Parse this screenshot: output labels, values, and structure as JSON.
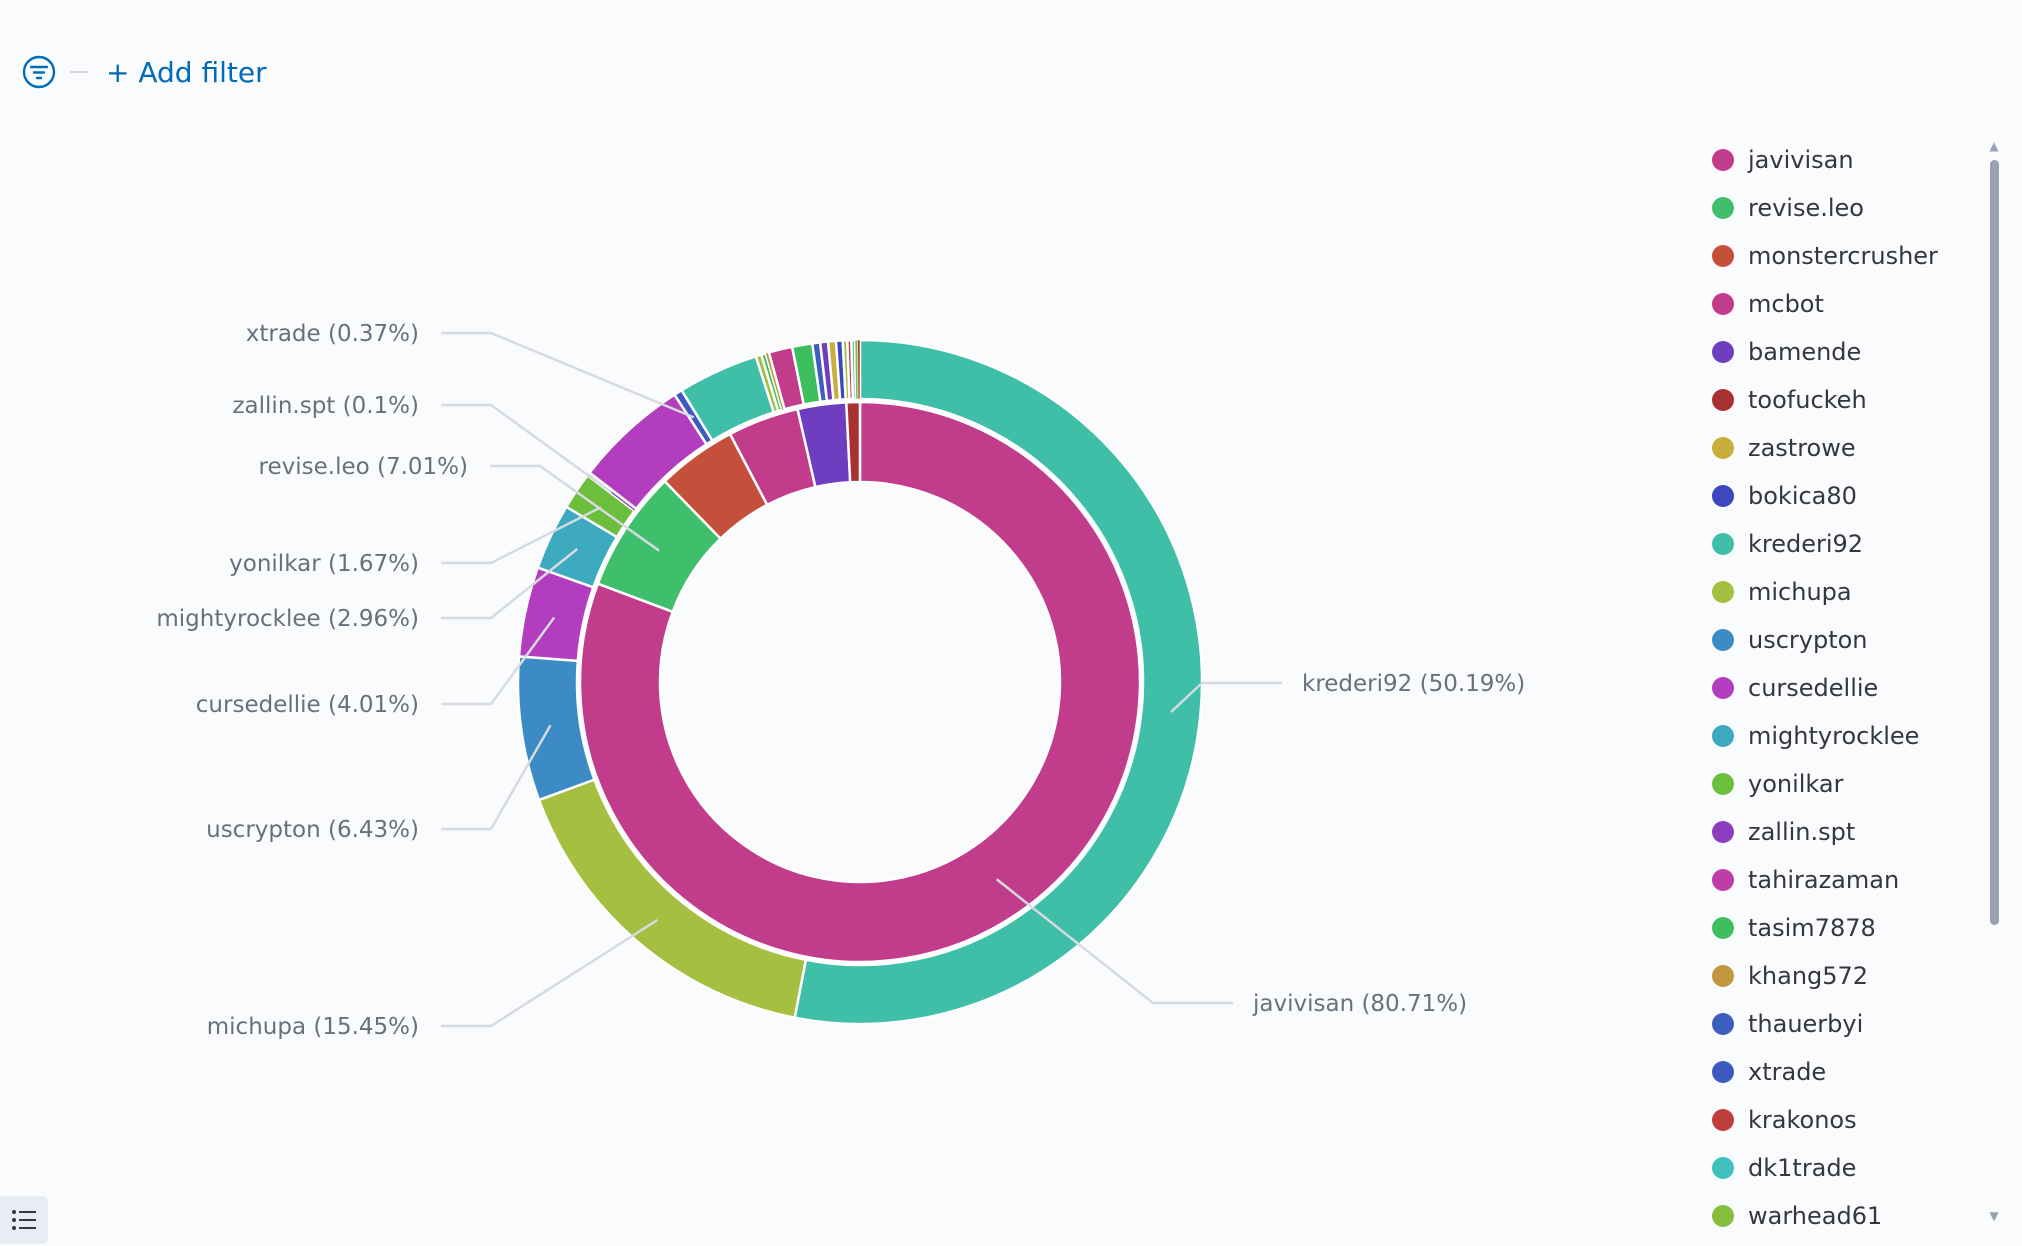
{
  "toolbar": {
    "add_filter_label": "+ Add filter",
    "filter_icon": "filter-icon"
  },
  "colors": {
    "javivisan": "#c13d8c",
    "revise.leo": "#3fbf6b",
    "monstercrusher": "#c4503b",
    "mcbot": "#c13d8c",
    "bamende": "#6f3dbf",
    "toofuckeh": "#a83232",
    "zastrowe": "#c9ad3d",
    "bokica80": "#3d47bf",
    "krederi92": "#40bfa8",
    "michupa": "#a6bf40",
    "uscrypton": "#3d8bc4",
    "cursedellie": "#b33dbf",
    "mightyrocklee": "#3daabf",
    "yonilkar": "#6cbf3d",
    "zallin.spt": "#8a3dbf",
    "tahirazaman": "#bf3da9",
    "tasim7878": "#3dbf60",
    "khang572": "#bf983d",
    "thauerbyi": "#3d5dbf",
    "xtrade": "#3d5abf",
    "krakonos": "#bf3d3d",
    "dk1trade": "#40bfbf",
    "warhead61": "#86bf3d"
  },
  "chart_data": {
    "type": "pie",
    "donut": true,
    "rings": [
      {
        "ring": "inner",
        "slices": [
          {
            "name": "javivisan",
            "value": 80.71
          },
          {
            "name": "revise.leo",
            "value": 7.01
          },
          {
            "name": "monstercrusher",
            "value": 4.6
          },
          {
            "name": "mcbot",
            "value": 4.1
          },
          {
            "name": "bamende",
            "value": 2.8
          },
          {
            "name": "toofuckeh",
            "value": 0.78
          }
        ]
      },
      {
        "ring": "outer",
        "slices": [
          {
            "name": "krederi92",
            "value": 50.19
          },
          {
            "name": "michupa",
            "value": 15.45
          },
          {
            "name": "uscrypton",
            "value": 6.43
          },
          {
            "name": "cursedellie",
            "value": 4.01
          },
          {
            "name": "mightyrocklee",
            "value": 2.96
          },
          {
            "name": "yonilkar",
            "value": 1.67
          },
          {
            "name": "zallin.spt",
            "value": 0.1
          },
          {
            "name": "tahirazaman",
            "value": 0.05
          },
          {
            "name": "cursedellie",
            "value": 5.1
          },
          {
            "name": "xtrade",
            "value": 0.37
          },
          {
            "name": "krederi92",
            "value": 3.6
          },
          {
            "name": "michupa",
            "value": 0.25
          },
          {
            "name": "tasim7878",
            "value": 0.2
          },
          {
            "name": "khang572",
            "value": 0.15
          },
          {
            "name": "mcbot",
            "value": 1.05
          },
          {
            "name": "tasim7878",
            "value": 0.9
          },
          {
            "name": "thauerbyi",
            "value": 0.35
          },
          {
            "name": "bamende",
            "value": 0.35
          },
          {
            "name": "zastrowe",
            "value": 0.35
          },
          {
            "name": "bokica80",
            "value": 0.3
          },
          {
            "name": "michupa",
            "value": 0.2
          },
          {
            "name": "krakonos",
            "value": 0.18
          },
          {
            "name": "dk1trade",
            "value": 0.16
          },
          {
            "name": "warhead61",
            "value": 0.12
          },
          {
            "name": "toofuckeh",
            "value": 0.1
          }
        ]
      }
    ],
    "labels": [
      {
        "text": "krederi92 (50.19%)",
        "side": "right",
        "ring": "outer",
        "slice": 0
      },
      {
        "text": "javivisan (80.71%)",
        "side": "right",
        "ring": "inner",
        "slice": 0
      },
      {
        "text": "michupa (15.45%)",
        "side": "left",
        "ring": "outer",
        "slice": 1
      },
      {
        "text": "uscrypton (6.43%)",
        "side": "left",
        "ring": "outer",
        "slice": 2
      },
      {
        "text": "cursedellie (4.01%)",
        "side": "left",
        "ring": "outer",
        "slice": 3
      },
      {
        "text": "mightyrocklee (2.96%)",
        "side": "left",
        "ring": "outer",
        "slice": 4
      },
      {
        "text": "yonilkar (1.67%)",
        "side": "left",
        "ring": "outer",
        "slice": 5
      },
      {
        "text": "revise.leo (7.01%)",
        "side": "left",
        "ring": "inner",
        "slice": 1
      },
      {
        "text": "zallin.spt (0.1%)",
        "side": "left",
        "ring": "outer",
        "slice": 6
      },
      {
        "text": "xtrade (0.37%)",
        "side": "left",
        "ring": "outer",
        "slice": 9
      }
    ],
    "legend": [
      "javivisan",
      "revise.leo",
      "monstercrusher",
      "mcbot",
      "bamende",
      "toofuckeh",
      "zastrowe",
      "bokica80",
      "krederi92",
      "michupa",
      "uscrypton",
      "cursedellie",
      "mightyrocklee",
      "yonilkar",
      "zallin.spt",
      "tahirazaman",
      "tasim7878",
      "khang572",
      "thauerbyi",
      "xtrade",
      "krakonos",
      "dk1trade",
      "warhead61"
    ],
    "legend_position": "right"
  }
}
